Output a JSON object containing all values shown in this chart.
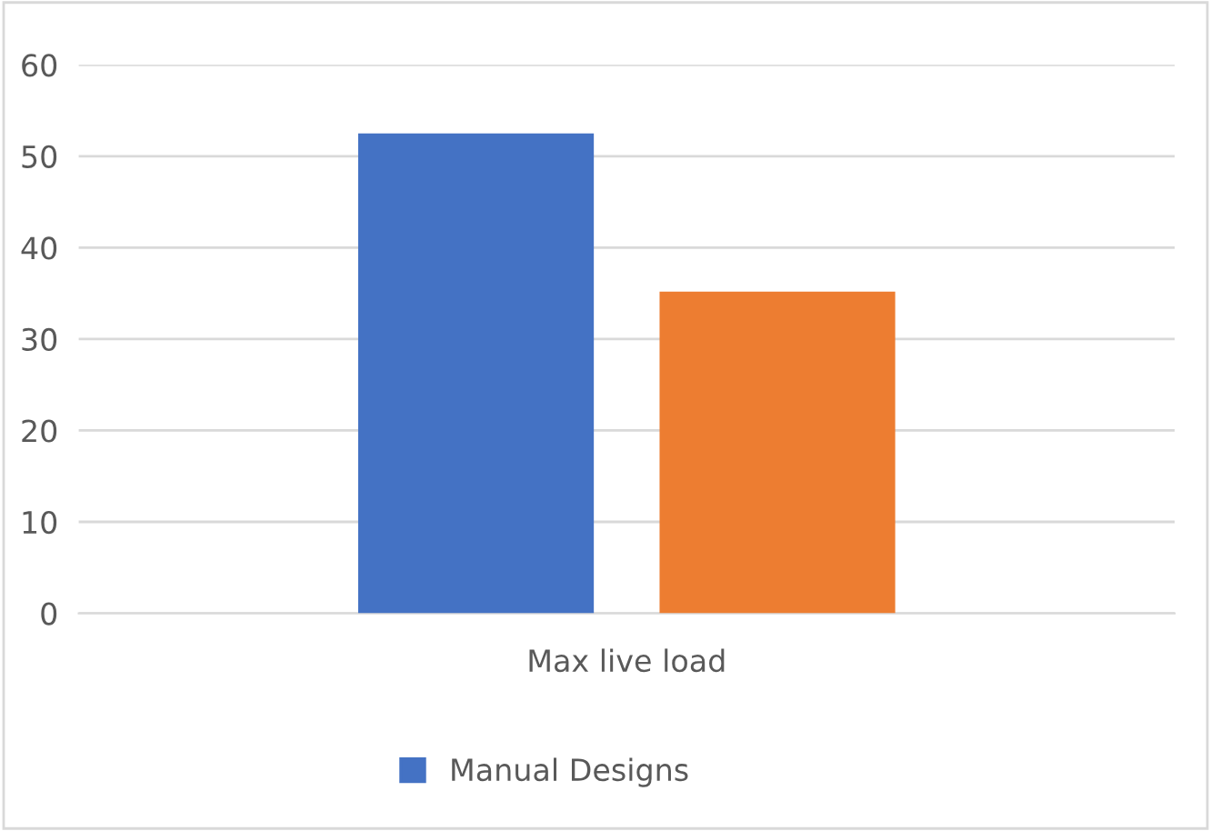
{
  "chart_data": {
    "type": "bar",
    "categories": [
      "Max live load"
    ],
    "series": [
      {
        "name": "Manual Designs",
        "color": "#4472c4",
        "values": [
          52.5
        ]
      },
      {
        "color": "#ed7d31",
        "values": [
          35.2
        ]
      }
    ],
    "ylim": [
      0,
      60
    ],
    "yticks": [
      0,
      10,
      20,
      30,
      40,
      50,
      60
    ],
    "grid": "y",
    "legend": "bottom"
  }
}
